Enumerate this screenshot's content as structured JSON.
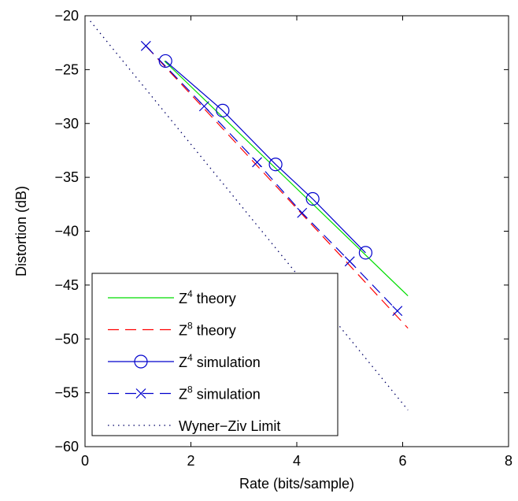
{
  "chart_data": {
    "type": "line",
    "title": "",
    "xlabel": "Rate (bits/sample)",
    "ylabel": "Distortion (dB)",
    "xlim": [
      0,
      8
    ],
    "ylim": [
      -60,
      -20
    ],
    "xticks": [
      0,
      2,
      4,
      6,
      8
    ],
    "yticks": [
      -60,
      -55,
      -50,
      -45,
      -40,
      -35,
      -30,
      -25,
      -20
    ],
    "xtick_labels": [
      "0",
      "2",
      "4",
      "6",
      "8"
    ],
    "ytick_labels": [
      "−60",
      "−55",
      "−50",
      "−45",
      "−40",
      "−35",
      "−30",
      "−25",
      "−20"
    ],
    "grid": false,
    "legend_position": "bottom-left",
    "series": [
      {
        "name": "Z^4 theory",
        "legend_base": "Z",
        "legend_sup": "4",
        "legend_rest": " theory",
        "color": "#00dd00",
        "style": "solid",
        "marker": "none",
        "x": [
          1.5,
          6.1
        ],
        "y": [
          -24.2,
          -46.0
        ]
      },
      {
        "name": "Z^8 theory",
        "legend_base": "Z",
        "legend_sup": "8",
        "legend_rest": " theory",
        "color": "#ff0000",
        "style": "dashed",
        "marker": "none",
        "x": [
          1.15,
          6.1
        ],
        "y": [
          -22.8,
          -49.0
        ]
      },
      {
        "name": "Z^4 simulation",
        "legend_base": "Z",
        "legend_sup": "4",
        "legend_rest": " simulation",
        "color": "#0000cc",
        "style": "solid",
        "marker": "circle",
        "x": [
          1.52,
          2.6,
          3.6,
          4.3,
          5.3
        ],
        "y": [
          -24.2,
          -28.8,
          -33.8,
          -37.0,
          -42.0
        ]
      },
      {
        "name": "Z^8 simulation",
        "legend_base": "Z",
        "legend_sup": "8",
        "legend_rest": " simulation",
        "color": "#0000cc",
        "style": "dashed",
        "marker": "x",
        "x": [
          1.15,
          2.25,
          3.25,
          4.1,
          5.0,
          5.9
        ],
        "y": [
          -22.8,
          -28.4,
          -33.6,
          -38.3,
          -42.8,
          -47.4
        ]
      },
      {
        "name": "Wyner-Ziv Limit",
        "legend_base": "Wyner−Ziv Limit",
        "legend_sup": "",
        "legend_rest": "",
        "color": "#000066",
        "style": "dotted",
        "marker": "none",
        "x": [
          0.1,
          6.1
        ],
        "y": [
          -20.5,
          -56.6
        ]
      }
    ]
  }
}
